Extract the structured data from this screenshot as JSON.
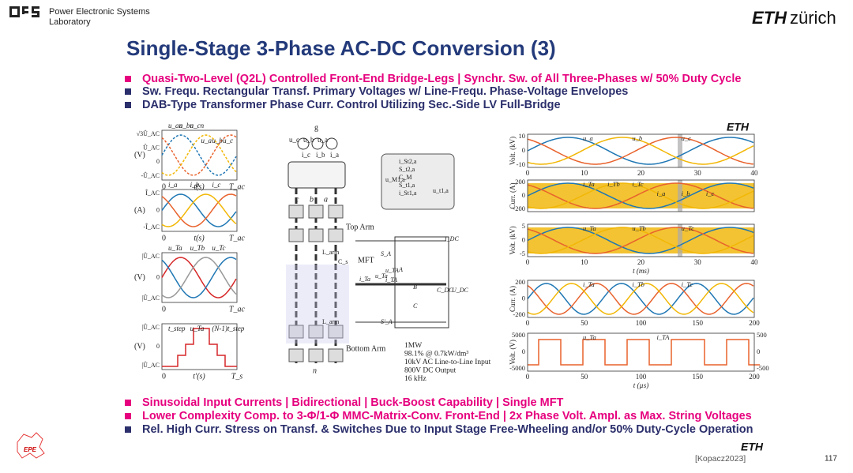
{
  "header": {
    "lab": [
      "Power Electronic Systems",
      "Laboratory"
    ],
    "eth": "ETH",
    "zurich": "zürich"
  },
  "title": "Single-Stage 3-Phase AC-DC Conversion (3)",
  "top_bullets": [
    "Quasi-Two-Level (Q2L) Controlled Front-End Bridge-Legs | Synchr. Sw. of All Three-Phases w/ 50% Duty Cycle",
    "Sw. Frequ. Rectangular Transf. Primary Voltages w/ Line-Frequ. Phase-Voltage Envelopes",
    "DAB-Type Transformer Phase Curr. Control Utilizing Sec.-Side LV Full-Bridge"
  ],
  "bottom_bullets": [
    "Sinusoidal Input Currents |  Bidirectional  |  Buck-Boost Capability  | Single MFT",
    "Lower Complexity Comp. to  3-Φ/1-Φ MMC-Matrix-Conv. Front-End  | 2x Phase Volt. Ampl. as Max. String Voltages",
    "Rel. High Curr. Stress on Transf. & Switches Due to Input Stage Free-Wheeling and/or 50%  Duty-Cycle Operation"
  ],
  "left_plots": [
    {
      "ylabel": "(V)",
      "yticks": [
        "√3Û_AC",
        "Û_AC",
        "0",
        "-Û_AC"
      ],
      "x0": "0",
      "xlabel": "t(s)",
      "xend": "T_ac",
      "curves": [
        "u_an",
        "u_bn",
        "u_cn",
        "u_a",
        "u_b",
        "u_c"
      ]
    },
    {
      "ylabel": "(A)",
      "yticks": [
        "Î_AC",
        "0",
        "-Î_AC"
      ],
      "x0": "0",
      "xlabel": "t(s)",
      "xend": "T_ac",
      "curves": [
        "i_a",
        "i_b",
        "i_c"
      ]
    },
    {
      "ylabel": "(V)",
      "yticks": [
        "|Û_AC",
        "0",
        "|Û_AC"
      ],
      "x0": "0",
      "xlabel": "",
      "xend": "T_ac",
      "curves": [
        "u_Ta",
        "u_Tb",
        "u_Tc"
      ]
    },
    {
      "ylabel": "(V)",
      "yticks": [
        "|Û_AC",
        "0",
        "|Û_AC"
      ],
      "x0": "0",
      "xlabel": "t′(s)",
      "xend": "T_s",
      "curves": [
        "t_step",
        "u_Ta",
        "(N-1)t_step"
      ]
    }
  ],
  "schematic": {
    "node_top": "g",
    "sources": [
      "u_c",
      "u_b",
      "u_a"
    ],
    "currents": [
      "i_c",
      "i_b",
      "i_a"
    ],
    "nodes": [
      "c",
      "b",
      "a"
    ],
    "top_arm": "Top Arm",
    "bottom_arm": "Bottom Arm",
    "mft": "MFT",
    "l_arm": "L_arm",
    "cs": "C_s",
    "node_n": "n",
    "inset": [
      "i_St2,a",
      "S_t2,a",
      "C_M",
      "S_t1,a",
      "i_St1,a",
      "u_M1,a",
      "u_t1,a"
    ],
    "bridge": [
      "I_DC",
      "S_A",
      "S′_A",
      "A",
      "B",
      "C",
      "C_DC",
      "U_DC",
      "i_Ta",
      "u_Ta",
      "u_TA",
      "i_TA"
    ],
    "specs": [
      "1MW",
      "98.1% @ 0.7kW/dm³",
      "10kV AC Line-to-Line Input",
      "800V DC  Output",
      "16 kHz"
    ]
  },
  "right_logo": "ETH",
  "right_plots": [
    {
      "ylabel": "Volt. (kV)",
      "yticks": [
        "10",
        "0",
        "-10"
      ],
      "xticks": [
        "0",
        "10",
        "20",
        "30",
        "40"
      ],
      "xlabel": "",
      "curves": [
        "u_a",
        "u_b",
        "u_c"
      ]
    },
    {
      "ylabel": "Curr. (A)",
      "yticks": [
        "200",
        "0",
        "-200"
      ],
      "xticks": [],
      "xlabel": "",
      "curves": [
        "i_Ta",
        "i_Tb",
        "i_Tc",
        "i_a",
        "i_b",
        "i_c"
      ]
    },
    {
      "ylabel": "Volt. (kV)",
      "yticks": [
        "5",
        "0",
        "-5"
      ],
      "xticks": [
        "0",
        "10",
        "20",
        "30",
        "40"
      ],
      "xlabel": "t (ms)",
      "curves": [
        "u_Ta",
        "u_Tb",
        "u_Tc"
      ]
    },
    {
      "ylabel": "Curr. (A)",
      "yticks": [
        "200",
        "0",
        "-200"
      ],
      "xticks": [
        "0",
        "50",
        "100",
        "150",
        "200"
      ],
      "xlabel": "",
      "curves": [
        "i_Ta",
        "i_Tb",
        "i_Tc"
      ]
    },
    {
      "ylabel": "Volt. (V)",
      "yticks": [
        "5000",
        "0",
        "-5000"
      ],
      "y2ticks": [
        "500",
        "0",
        "-500"
      ],
      "xticks": [
        "0",
        "50",
        "100",
        "150",
        "200"
      ],
      "xlabel": "t (µs)",
      "curves": [
        "u_Ta",
        "i_TA"
      ]
    }
  ],
  "footer": {
    "logo": "EPE",
    "eth": "ETH",
    "citation": "[Kopacz2023]",
    "page": "117"
  }
}
